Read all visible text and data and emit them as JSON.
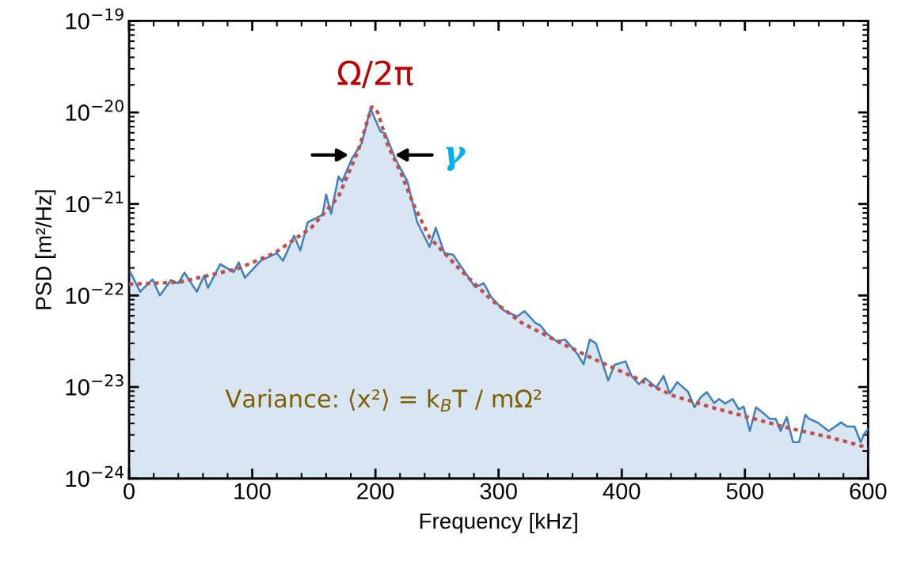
{
  "chart_data": {
    "type": "area",
    "xlabel": "Frequency [kHz]",
    "ylabel": "PSD [m²/Hz]",
    "log": "y",
    "xlim": [
      0,
      600
    ],
    "xticks": [
      0,
      100,
      200,
      300,
      400,
      500,
      600
    ],
    "ylim": [
      1e-24,
      1e-19
    ],
    "yticks": [
      {
        "value": 1e-24,
        "label": "10$^{−24}$"
      },
      {
        "value": 1e-23,
        "label": "10$^{−23}$"
      },
      {
        "value": 1e-22,
        "label": "10$^{−22}$"
      },
      {
        "value": 1e-21,
        "label": "10$^{−21}$"
      },
      {
        "value": 1e-20,
        "label": "10$^{−20}$"
      },
      {
        "value": 1e-19,
        "label": "10$^{−19}$"
      }
    ],
    "series": [
      {
        "color": "#3d7fbf",
        "line_style": "solid",
        "x": [
          1,
          9,
          19,
          25,
          34,
          40,
          45,
          55,
          61,
          64,
          74,
          85,
          89,
          94,
          107,
          120,
          125,
          134,
          139,
          145,
          157,
          160,
          164,
          170,
          173,
          181,
          189,
          196,
          204,
          208,
          216,
          226,
          234,
          244,
          249,
          256,
          263,
          281,
          288,
          294,
          304,
          315,
          321,
          330,
          334,
          339,
          347,
          354,
          364,
          369,
          374,
          379,
          389,
          394,
          403,
          408,
          414,
          419,
          428,
          434,
          439,
          445,
          450,
          454,
          459,
          464,
          469,
          475,
          479,
          484,
          490,
          495,
          499,
          504,
          509,
          515,
          520,
          525,
          529,
          534,
          539,
          544,
          549,
          552,
          559,
          568,
          578,
          583,
          589,
          594,
          597,
          600
        ],
        "values": [
          1.8e-22,
          1.1e-22,
          1.5e-22,
          1e-22,
          1.47e-22,
          1.36e-22,
          1.78e-22,
          1.1e-22,
          1.65e-22,
          1.21e-22,
          2.2e-22,
          1.8e-22,
          2.3e-22,
          1.56e-22,
          2.4e-22,
          2.9e-22,
          2.4e-22,
          4.5e-22,
          3.1e-22,
          6.3e-22,
          7.6e-22,
          1.27e-21,
          7.8e-22,
          2e-21,
          1.76e-21,
          3.15e-21,
          4.65e-21,
          1.1e-20,
          6.2e-21,
          5.9e-21,
          3.15e-21,
          1.76e-21,
          6.3e-22,
          3.4e-22,
          5.5e-22,
          2.9e-22,
          2.8e-22,
          1.23e-22,
          1.36e-22,
          9.6e-23,
          6.9e-23,
          5.9e-23,
          6.75e-23,
          5e-23,
          4.7e-23,
          3.85e-23,
          3.17e-23,
          3.3e-23,
          2.3e-23,
          1.77e-23,
          3.3e-23,
          3e-23,
          1.18e-23,
          1.74e-23,
          1.91e-23,
          1.32e-23,
          1.07e-23,
          1.25e-23,
          9.9e-24,
          1.32e-23,
          8.5e-24,
          1.13e-23,
          9.9e-24,
          8.8e-24,
          6e-24,
          7.7e-24,
          8.8e-24,
          6.7e-24,
          7.4e-24,
          6.6e-24,
          7.4e-24,
          5.7e-24,
          6.1e-24,
          3.3e-24,
          6e-24,
          5.2e-24,
          4.5e-24,
          4.5e-24,
          3.3e-24,
          4.7e-24,
          2.5e-24,
          2.5e-24,
          5e-24,
          4.5e-24,
          4.1e-24,
          3.3e-24,
          4.1e-24,
          3.7e-24,
          3.7e-24,
          2.5e-24,
          3.1e-24,
          3.5e-24
        ]
      },
      {
        "type": "line",
        "color": "#c0504d",
        "line_style": "dotted",
        "x": [
          0,
          41,
          88,
          118,
          148,
          170,
          186,
          197,
          202,
          210,
          221,
          231,
          244,
          268,
          294,
          319,
          349,
          377,
          409,
          441,
          473,
          506,
          538,
          570,
          600
        ],
        "values": [
          1.33e-22,
          1.4e-22,
          1.96e-22,
          2.9e-22,
          5.5e-22,
          1.2e-21,
          3.8e-21,
          1.15e-20,
          1e-20,
          4.4e-21,
          2.14e-21,
          9.8e-22,
          4.3e-22,
          1.96e-22,
          9e-23,
          5e-23,
          3.1e-23,
          2.03e-23,
          1.3e-23,
          8.1e-24,
          6e-24,
          4.55e-24,
          3.5e-24,
          2.8e-24,
          2.17e-24
        ]
      }
    ],
    "annotations": [
      "Ω/2π",
      "γ",
      "Variance: ⟨x²⟩ = k$_{B}$T / mΩ²"
    ]
  }
}
